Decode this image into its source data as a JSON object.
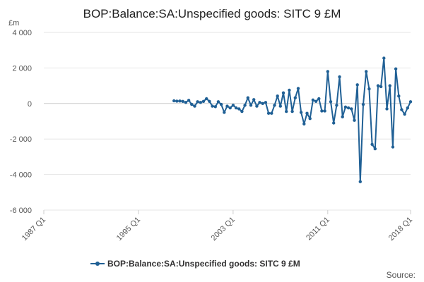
{
  "chart_data": {
    "type": "line",
    "title": "BOP:Balance:SA:Unspecified goods: SITC 9 £M",
    "ylabel": "£m",
    "ylim": [
      -6000,
      4000
    ],
    "yticks": [
      4000,
      2000,
      0,
      -2000,
      -4000,
      -6000
    ],
    "ytick_labels": [
      "4 000",
      "2 000",
      "0",
      "-2 000",
      "-4 000",
      "-6 000"
    ],
    "x_range": [
      "1987 Q1",
      "2018 Q1"
    ],
    "xtick_labels": [
      "1987 Q1",
      "1995 Q1",
      "2003 Q1",
      "2011 Q1",
      "2018 Q1"
    ],
    "grid": true,
    "legend_position": "bottom",
    "source": "Source:",
    "series": [
      {
        "name": "BOP:Balance:SA:Unspecified goods: SITC 9 £M",
        "color": "#206095",
        "start_quarter": "1998 Q1",
        "values": [
          150,
          130,
          140,
          120,
          60,
          180,
          -50,
          -150,
          100,
          60,
          120,
          270,
          120,
          -150,
          -180,
          100,
          -50,
          -500,
          -150,
          -250,
          -100,
          -250,
          -300,
          -450,
          -100,
          320,
          -100,
          220,
          -150,
          60,
          0,
          60,
          -550,
          -550,
          -100,
          420,
          -150,
          600,
          -450,
          750,
          -450,
          320,
          850,
          -500,
          -1150,
          -550,
          -850,
          200,
          120,
          270,
          -420,
          -420,
          1800,
          100,
          -1100,
          -100,
          1500,
          -750,
          -200,
          -250,
          -300,
          -950,
          1050,
          -4400,
          -50,
          1800,
          820,
          -2300,
          -2550,
          1000,
          950,
          2550,
          -300,
          1000,
          -2450,
          1950,
          420,
          -350,
          -600,
          -250,
          100
        ]
      }
    ]
  }
}
